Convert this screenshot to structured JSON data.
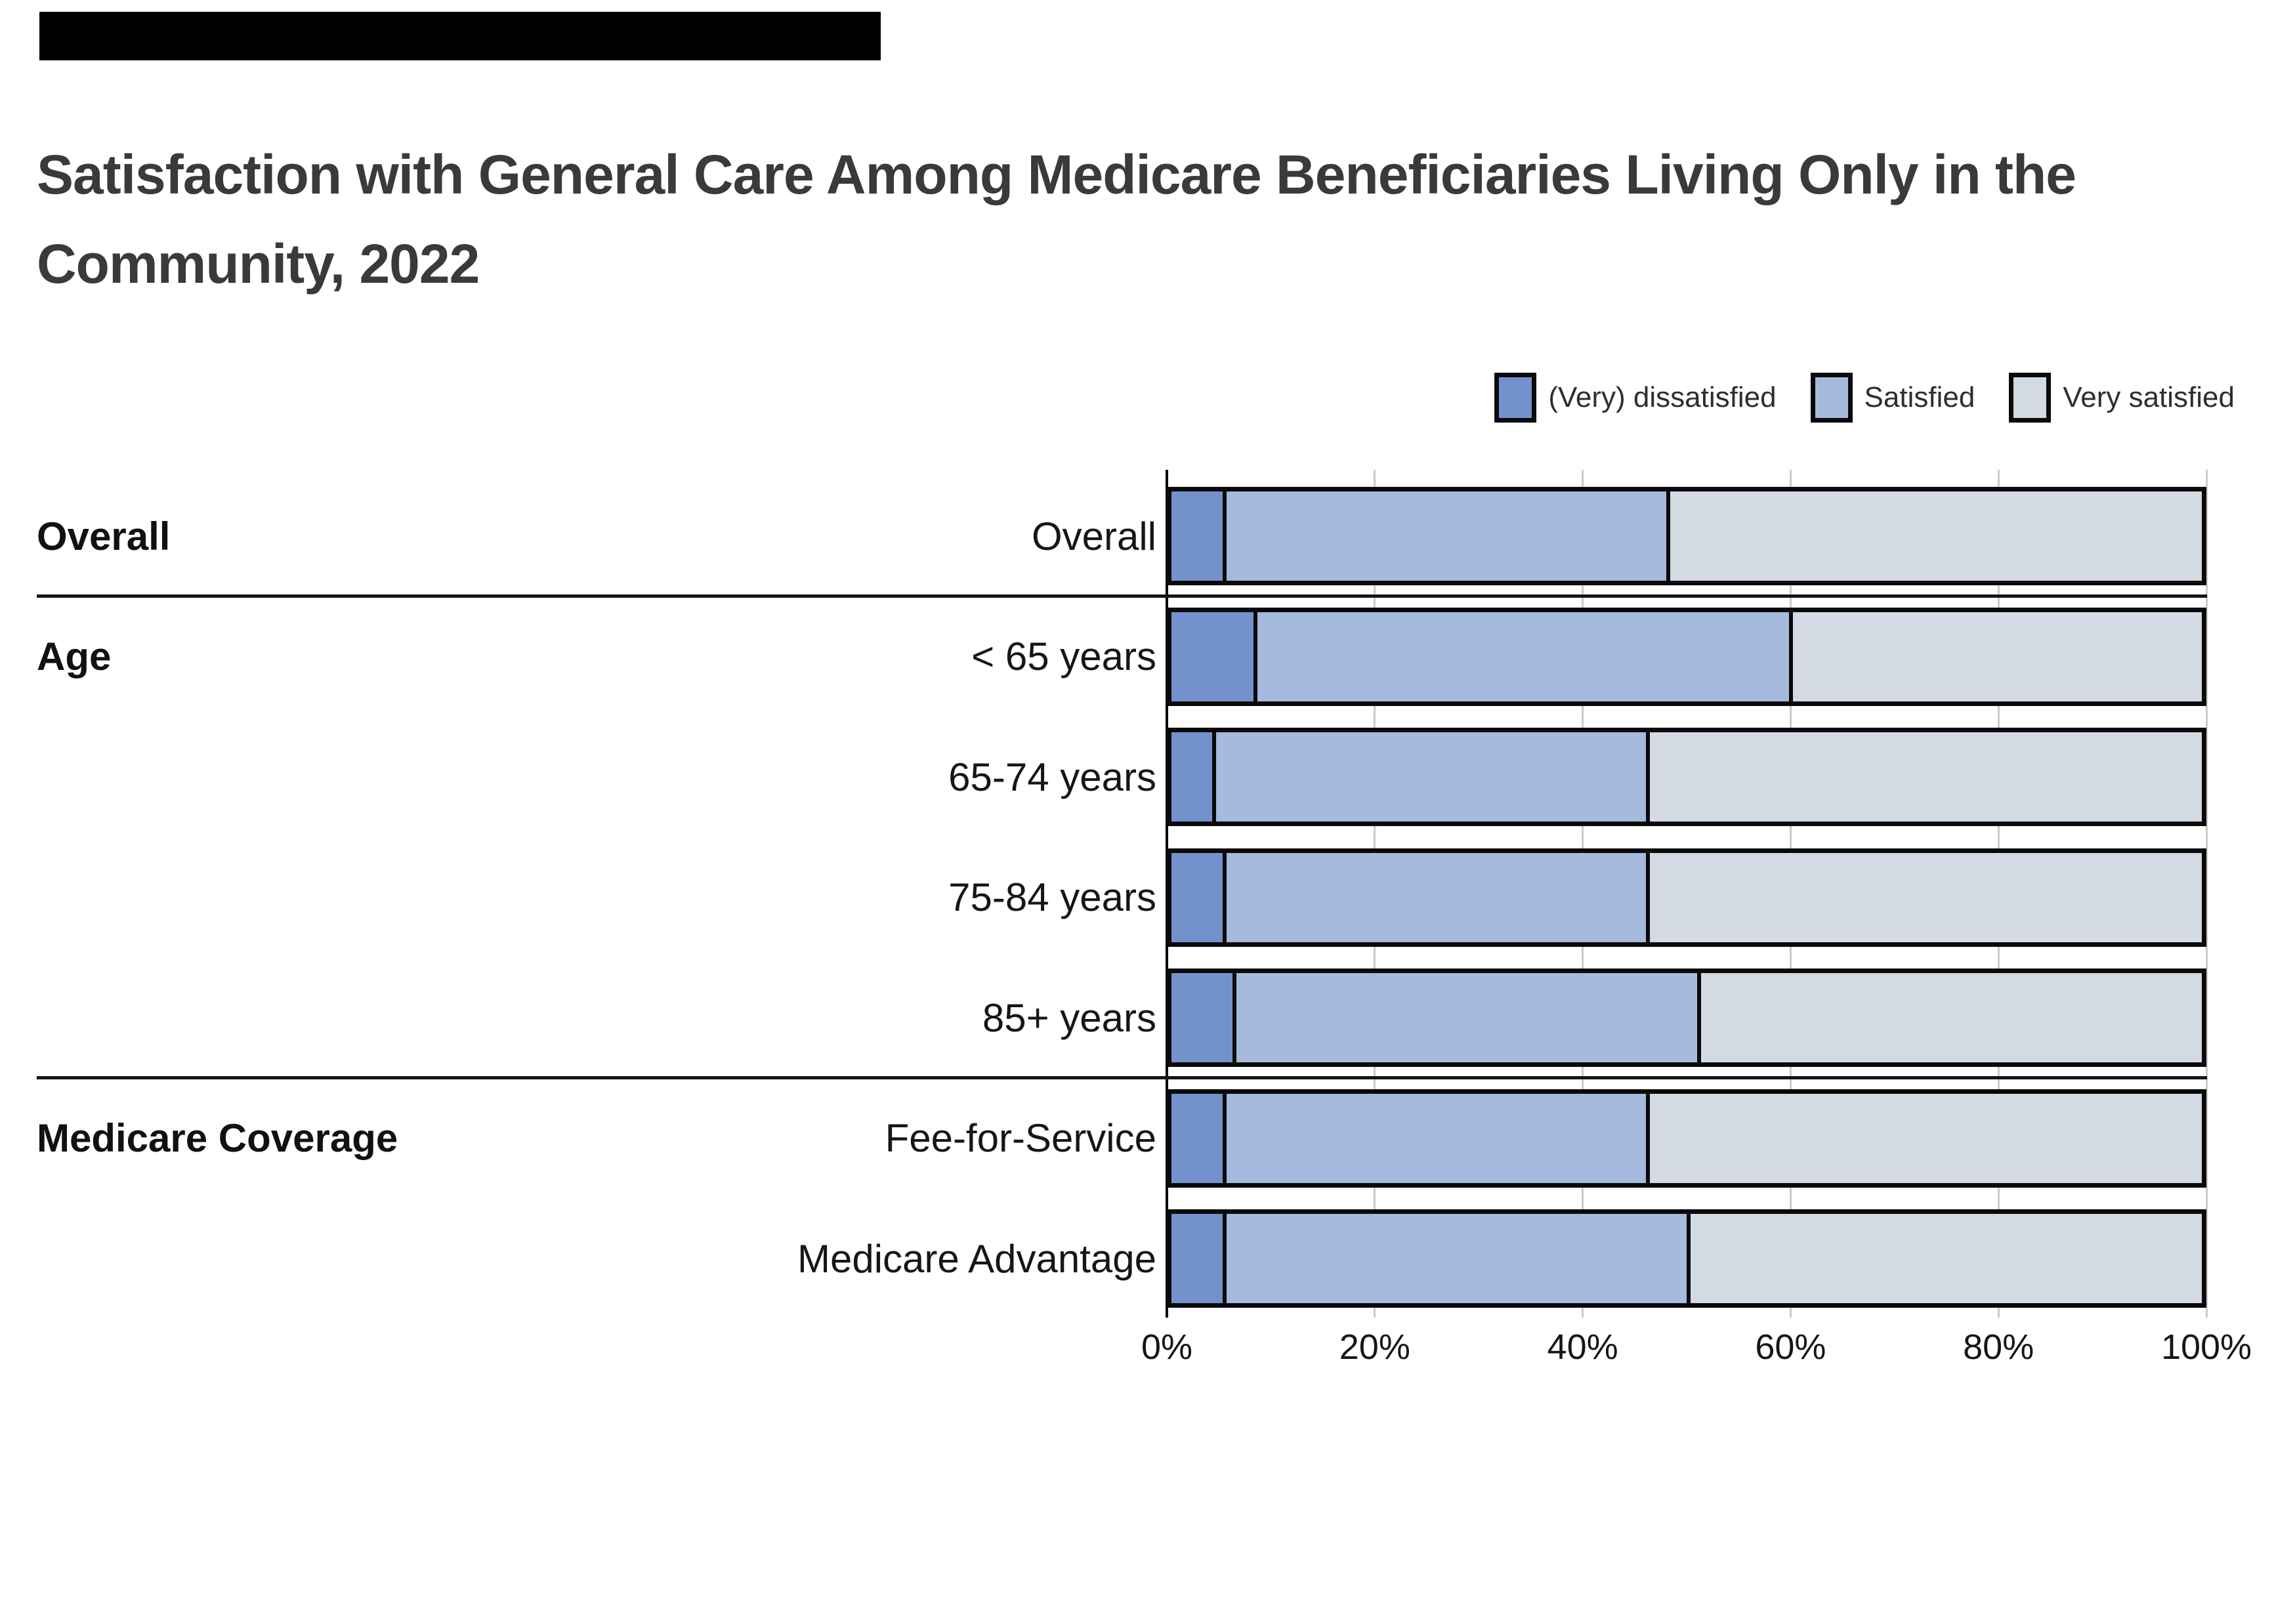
{
  "title": {
    "line1": "Satisfaction with General Care Among Medicare Beneficiaries Living Only in the",
    "line2": "Community, 2022",
    "full": "Satisfaction with General Care Among Medicare Beneficiaries Living Only in the Community, 2022"
  },
  "legend": {
    "position": "top-right",
    "items": [
      {
        "label": "(Very) dissatisfied",
        "color": "#7392cd"
      },
      {
        "label": "Satisfied",
        "color": "#a6badd"
      },
      {
        "label": "Very satisfied",
        "color": "#d4dae3"
      }
    ]
  },
  "chart_data": {
    "type": "bar",
    "orientation": "horizontal",
    "stacked": true,
    "title": "Satisfaction with General Care Among Medicare Beneficiaries Living Only in the Community, 2022",
    "categories": [
      "Overall",
      "< 65 years",
      "65-74 years",
      "75-84 years",
      "85+ years",
      "Fee-for-Service",
      "Medicare Advantage"
    ],
    "groups": [
      {
        "label": "Overall",
        "rows": [
          0
        ]
      },
      {
        "label": "Age",
        "rows": [
          1,
          2,
          3,
          4
        ]
      },
      {
        "label": "Medicare Coverage",
        "rows": [
          5,
          6
        ]
      }
    ],
    "series": [
      {
        "name": "(Very) dissatisfied",
        "color": "#7392cd",
        "values": [
          5,
          8,
          4,
          5,
          6,
          5,
          5
        ]
      },
      {
        "name": "Satisfied",
        "color": "#a6badd",
        "values": [
          43,
          52,
          42,
          41,
          45,
          41,
          45
        ]
      },
      {
        "name": "Very satisfied",
        "color": "#d4dae3",
        "values": [
          52,
          40,
          54,
          54,
          49,
          54,
          50
        ]
      }
    ],
    "x_axis": {
      "ticks": [
        "0%",
        "20%",
        "40%",
        "60%",
        "80%",
        "100%"
      ],
      "range": [
        0,
        100
      ],
      "grid": true
    },
    "colors": {
      "bar_border": "#0a0a0a",
      "gridline": "#cbcbcb",
      "title_text": "#3a3a3a",
      "label_text": "#161616"
    }
  }
}
